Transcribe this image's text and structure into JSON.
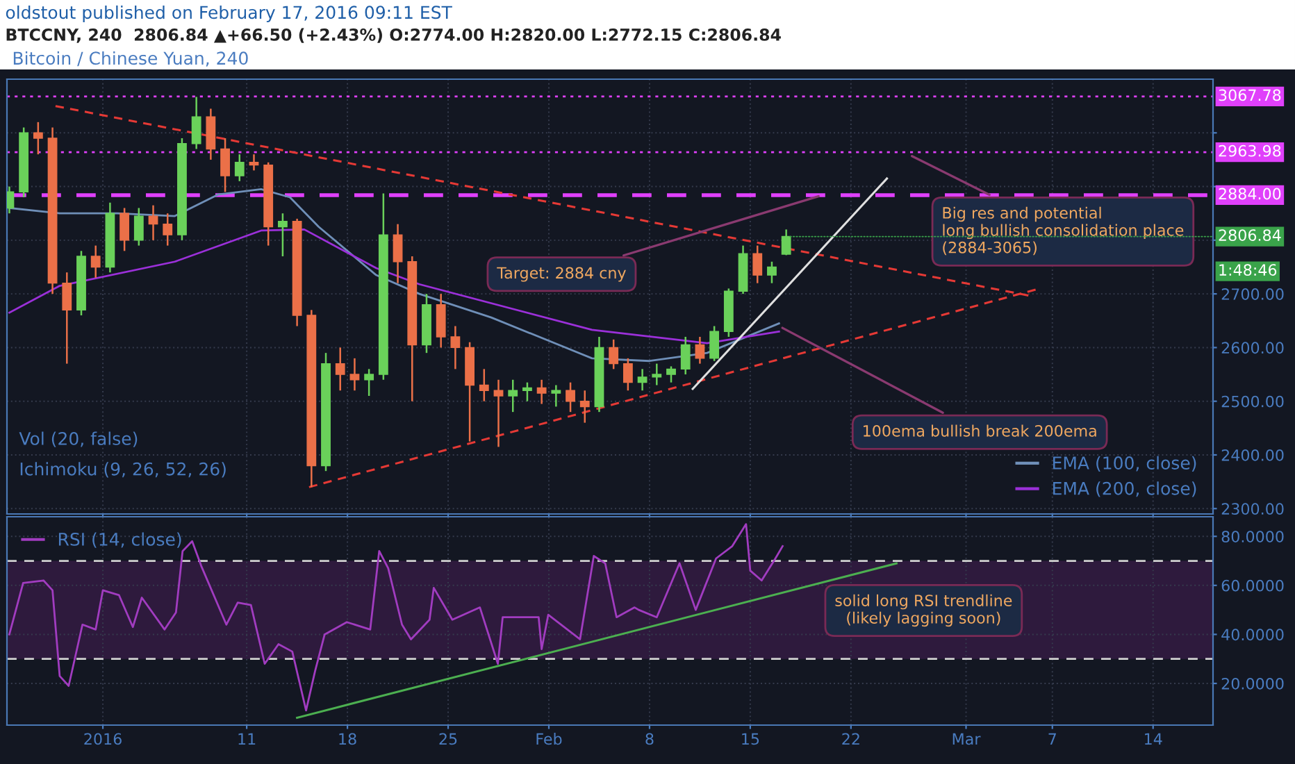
{
  "chart_data": [
    {
      "type": "candlestick",
      "title": "Bitcoin / Chinese Yuan, 240",
      "subtitle": "BTCCNY, 240  2806.84 ▲+66.50 (+2.43%) O:2774.00 H:2820.00 L:2772.15 C:2806.84",
      "x": [
        "2015-12-25T12:00",
        "2015-12-26T12:00",
        "2015-12-27T12:00",
        "2015-12-28T12:00",
        "2015-12-29T12:00",
        "2015-12-30T12:00",
        "2015-12-31T12:00",
        "2016-01-01T12:00",
        "2016-01-02T12:00",
        "2016-01-03T12:00",
        "2016-01-04T12:00",
        "2016-01-05T12:00",
        "2016-01-06T12:00",
        "2016-01-07T12:00",
        "2016-01-08T12:00",
        "2016-01-09T12:00",
        "2016-01-10T12:00",
        "2016-01-11T12:00",
        "2016-01-12T12:00",
        "2016-01-13T12:00",
        "2016-01-14T12:00",
        "2016-01-15T12:00",
        "2016-01-16T12:00",
        "2016-01-17T12:00",
        "2016-01-18T12:00",
        "2016-01-19T12:00",
        "2016-01-20T12:00",
        "2016-01-21T12:00",
        "2016-01-22T12:00",
        "2016-01-23T12:00",
        "2016-01-24T12:00",
        "2016-01-25T12:00",
        "2016-01-26T12:00",
        "2016-01-27T12:00",
        "2016-01-28T12:00",
        "2016-01-29T12:00",
        "2016-01-30T12:00",
        "2016-01-31T12:00",
        "2016-02-01T12:00",
        "2016-02-02T12:00",
        "2016-02-03T12:00",
        "2016-02-04T12:00",
        "2016-02-05T12:00",
        "2016-02-06T12:00",
        "2016-02-07T12:00",
        "2016-02-08T12:00",
        "2016-02-09T12:00",
        "2016-02-10T12:00",
        "2016-02-11T12:00",
        "2016-02-12T12:00",
        "2016-02-13T12:00",
        "2016-02-14T12:00",
        "2016-02-15T12:00",
        "2016-02-16T12:00",
        "2016-02-17T12:00"
      ],
      "ohlc": [
        [
          2860,
          2900,
          2850,
          2890
        ],
        [
          2890,
          3010,
          2880,
          3000
        ],
        [
          3000,
          3020,
          2960,
          2990
        ],
        [
          2990,
          3010,
          2700,
          2720
        ],
        [
          2720,
          2740,
          2570,
          2670
        ],
        [
          2670,
          2780,
          2660,
          2770
        ],
        [
          2770,
          2790,
          2730,
          2750
        ],
        [
          2750,
          2870,
          2740,
          2850
        ],
        [
          2850,
          2860,
          2780,
          2800
        ],
        [
          2800,
          2860,
          2790,
          2845
        ],
        [
          2845,
          2865,
          2800,
          2830
        ],
        [
          2830,
          2850,
          2790,
          2810
        ],
        [
          2810,
          2990,
          2800,
          2980
        ],
        [
          2980,
          3067,
          2970,
          3030
        ],
        [
          3030,
          3045,
          2950,
          2970
        ],
        [
          2970,
          2990,
          2890,
          2920
        ],
        [
          2920,
          2960,
          2910,
          2945
        ],
        [
          2945,
          2960,
          2930,
          2940
        ],
        [
          2940,
          2945,
          2790,
          2825
        ],
        [
          2825,
          2850,
          2770,
          2835
        ],
        [
          2835,
          2840,
          2640,
          2660
        ],
        [
          2660,
          2670,
          2340,
          2380
        ],
        [
          2380,
          2590,
          2370,
          2570
        ],
        [
          2570,
          2600,
          2520,
          2550
        ],
        [
          2550,
          2580,
          2520,
          2540
        ],
        [
          2540,
          2560,
          2510,
          2550
        ],
        [
          2550,
          2887,
          2540,
          2810
        ],
        [
          2810,
          2830,
          2720,
          2760
        ],
        [
          2760,
          2770,
          2500,
          2605
        ],
        [
          2605,
          2700,
          2590,
          2680
        ],
        [
          2680,
          2700,
          2600,
          2620
        ],
        [
          2620,
          2640,
          2560,
          2600
        ],
        [
          2600,
          2610,
          2425,
          2530
        ],
        [
          2530,
          2560,
          2500,
          2520
        ],
        [
          2520,
          2540,
          2415,
          2510
        ],
        [
          2510,
          2540,
          2480,
          2520
        ],
        [
          2520,
          2535,
          2500,
          2525
        ],
        [
          2525,
          2540,
          2495,
          2515
        ],
        [
          2515,
          2530,
          2490,
          2520
        ],
        [
          2520,
          2535,
          2480,
          2500
        ],
        [
          2500,
          2520,
          2460,
          2490
        ],
        [
          2490,
          2620,
          2480,
          2600
        ],
        [
          2600,
          2615,
          2560,
          2570
        ],
        [
          2570,
          2580,
          2520,
          2535
        ],
        [
          2535,
          2560,
          2520,
          2545
        ],
        [
          2545,
          2570,
          2530,
          2550
        ],
        [
          2550,
          2565,
          2535,
          2560
        ],
        [
          2560,
          2620,
          2550,
          2605
        ],
        [
          2605,
          2620,
          2570,
          2580
        ],
        [
          2580,
          2640,
          2575,
          2630
        ],
        [
          2630,
          2710,
          2620,
          2705
        ],
        [
          2705,
          2790,
          2700,
          2775
        ],
        [
          2775,
          2790,
          2720,
          2735
        ],
        [
          2735,
          2760,
          2720,
          2750
        ],
        [
          2774,
          2820,
          2772.15,
          2806.84
        ]
      ],
      "colors": [
        "#6ad15a",
        "#6ad15a",
        "#eb7048",
        "#eb7048",
        "#eb7048",
        "#6ad15a",
        "#eb7048",
        "#6ad15a",
        "#eb7048",
        "#6ad15a",
        "#eb7048",
        "#eb7048",
        "#6ad15a",
        "#6ad15a",
        "#eb7048",
        "#eb7048",
        "#6ad15a",
        "#eb7048",
        "#eb7048",
        "#6ad15a",
        "#eb7048",
        "#eb7048",
        "#6ad15a",
        "#eb7048",
        "#eb7048",
        "#6ad15a",
        "#6ad15a",
        "#eb7048",
        "#eb7048",
        "#6ad15a",
        "#eb7048",
        "#eb7048",
        "#eb7048",
        "#eb7048",
        "#eb7048",
        "#6ad15a",
        "#6ad15a",
        "#eb7048",
        "#6ad15a",
        "#eb7048",
        "#eb7048",
        "#6ad15a",
        "#eb7048",
        "#eb7048",
        "#6ad15a",
        "#6ad15a",
        "#6ad15a",
        "#6ad15a",
        "#eb7048",
        "#6ad15a",
        "#6ad15a",
        "#6ad15a",
        "#eb7048",
        "#6ad15a",
        "#6ad15a"
      ],
      "series": [
        {
          "name": "EMA (100, close)",
          "type": "line",
          "color": "#6f8fb8",
          "x": [
            "2015-12-25T12:00",
            "2015-12-29",
            "2016-01-02",
            "2016-01-06",
            "2016-01-09",
            "2016-01-12",
            "2016-01-14",
            "2016-01-16",
            "2016-01-20",
            "2016-01-23",
            "2016-01-28",
            "2016-02-04",
            "2016-02-08",
            "2016-02-12",
            "2016-02-17"
          ],
          "values": [
            2860,
            2850,
            2850,
            2845,
            2885,
            2895,
            2880,
            2825,
            2735,
            2700,
            2656,
            2580,
            2575,
            2590,
            2645
          ]
        },
        {
          "name": "EMA (200, close)",
          "type": "line",
          "color": "#9b30d9",
          "x": [
            "2015-12-25T12:00",
            "2015-12-29",
            "2016-01-06",
            "2016-01-12",
            "2016-01-15",
            "2016-01-20",
            "2016-01-23",
            "2016-02-04",
            "2016-02-12",
            "2016-02-17"
          ],
          "values": [
            2665,
            2715,
            2760,
            2818,
            2820,
            2748,
            2718,
            2633,
            2608,
            2630
          ]
        },
        {
          "type": "line",
          "color": "#e53935",
          "line_style": "dashed",
          "x": [
            "2015-12-28T17:00",
            "2016-03-05T08:00"
          ],
          "values": [
            3050,
            2697
          ]
        },
        {
          "type": "line",
          "color": "#e53935",
          "line_style": "dashed",
          "x": [
            "2016-01-15T08:00",
            "2016-03-05T20:00"
          ],
          "values": [
            2340,
            2708
          ]
        },
        {
          "type": "line",
          "color": "#e0e0e0",
          "line_style": "solid",
          "x": [
            "2016-02-11",
            "2016-02-24T12:00"
          ],
          "values": [
            2523,
            2915
          ]
        }
      ],
      "xlim": [
        "2015-12-25T08:00",
        "2016-03-18T04:00"
      ],
      "xticks": [
        {
          "value": "2016-01-01",
          "label": null
        },
        {
          "value": "2016-01-11",
          "label": null
        },
        {
          "value": "2016-01-18",
          "label": null
        },
        {
          "value": "2016-01-25",
          "label": null
        },
        {
          "value": "2016-02-01",
          "label": null
        },
        {
          "value": "2016-02-08",
          "label": null
        },
        {
          "value": "2016-02-15",
          "label": null
        },
        {
          "value": "2016-02-22",
          "label": null
        },
        {
          "value": "2016-03-01",
          "label": null
        },
        {
          "value": "2016-03-07",
          "label": null
        },
        {
          "value": "2016-03-14",
          "label": null
        }
      ],
      "ylim": [
        2290,
        3100
      ],
      "yticks": [
        {
          "value": 2300,
          "label": "2300.00"
        },
        {
          "value": 2400,
          "label": "2400.00"
        },
        {
          "value": 2500,
          "label": "2500.00"
        },
        {
          "value": 2600,
          "label": "2600.00"
        },
        {
          "value": 2700,
          "label": "2700.00"
        },
        {
          "value": 2800,
          "label": null
        },
        {
          "value": 2900,
          "label": null
        },
        {
          "value": 3000,
          "label": null
        }
      ],
      "ref_lines": [
        {
          "axis": "y",
          "value": 3067.78,
          "label": "3067.78",
          "color": "#e040fb",
          "line_style": "dotted"
        },
        {
          "axis": "y",
          "value": 2963.98,
          "label": "2963.98",
          "color": "#e040fb",
          "line_style": "dotted"
        },
        {
          "axis": "y",
          "value": 2884.0,
          "label": "2884.00",
          "color": "#e040fb",
          "line_style": "dashed"
        }
      ],
      "annotations": [
        "oldstout published on February 17, 2016 09:11 EST",
        "Vol (20, false)",
        "Ichimoku (9, 26, 52, 26)",
        {
          "text": "Target: 2884 cny",
          "x": "2016-02-20",
          "y": 2884
        },
        {
          "text": "Big res and potential\nlong bullish consolidation place\n(2884-3065)",
          "x": "2016-02-26",
          "y": 2960
        },
        {
          "text": "100ema bullish break 200ema",
          "x": "2016-02-17",
          "y": 2640
        },
        {
          "text": "2806.84",
          "x": "2016-02-17T09:00",
          "y": 2806.84
        },
        "1:48:46"
      ],
      "grid": true,
      "legend": "bottom right",
      "tick_labels": "y"
    },
    {
      "type": "line",
      "series": [
        {
          "name": "RSI (14, close)",
          "color": "#a13cc0",
          "x": [
            "2015-12-25T12:00",
            "2015-12-26T11:00",
            "2015-12-27T21:00",
            "2015-12-28T12:00",
            "2015-12-29T00:00",
            "2015-12-29T15:00",
            "2015-12-30T14:00",
            "2015-12-31T12:00",
            "2016-01-01T00:00",
            "2016-01-02T03:00",
            "2016-01-03T02:00",
            "2016-01-03T17:00",
            "2016-01-05T07:00",
            "2016-01-06T02:00",
            "2016-01-06T13:00",
            "2016-01-07T05:00",
            "2016-01-07T20:00",
            "2016-01-09T14:00",
            "2016-01-10T09:00",
            "2016-01-11T07:00",
            "2016-01-12T06:00",
            "2016-01-13T05:00",
            "2016-01-14T04:00",
            "2016-01-15T03:00",
            "2016-01-15T18:00",
            "2016-01-16T10:00",
            "2016-01-17T23:00",
            "2016-01-19T14:00",
            "2016-01-20T05:00",
            "2016-01-20T20:00",
            "2016-01-21T19:00",
            "2016-01-22T10:00",
            "2016-01-23T17:00",
            "2016-01-24T00:00",
            "2016-01-25T07:00",
            "2016-01-27T05:00",
            "2016-01-28T11:00",
            "2016-01-28T19:00",
            "2016-01-31T07:00",
            "2016-01-31T12:00",
            "2016-01-31T23:00",
            "2016-02-03T04:00",
            "2016-02-04T03:00",
            "2016-02-04T22:00",
            "2016-02-05T17:00",
            "2016-02-06T23:00",
            "2016-02-07T06:00",
            "2016-02-08T12:00",
            "2016-02-10T02:00",
            "2016-02-11T05:00",
            "2016-02-12T15:00",
            "2016-02-13T18:00",
            "2016-02-14T17:00",
            "2016-02-15T00:00",
            "2016-02-15T19:00",
            "2016-02-16T18:00",
            "2016-02-17T06:00"
          ],
          "values": [
            40,
            61,
            62,
            58,
            23,
            19,
            44,
            42,
            58,
            56,
            43,
            55,
            42,
            49,
            74,
            78,
            68,
            44,
            53,
            52,
            28,
            36,
            33,
            9,
            25,
            40,
            45,
            42,
            74,
            67,
            44,
            38,
            46,
            59,
            46,
            51,
            28,
            47,
            47,
            34,
            48,
            38,
            72,
            69,
            47,
            51,
            50,
            47,
            69,
            50,
            71,
            76,
            85,
            66,
            62,
            71,
            76
          ]
        },
        {
          "type": "line",
          "color": "#4caf50",
          "x": [
            "2016-01-14T12:00",
            "2016-02-25T04:00"
          ],
          "values": [
            6,
            69
          ]
        }
      ],
      "xlim": [
        "2015-12-25T08:00",
        "2016-03-18T04:00"
      ],
      "xticks": [
        {
          "value": "2016-01-01",
          "label": "2016"
        },
        {
          "value": "2016-01-11",
          "label": "11"
        },
        {
          "value": "2016-01-18",
          "label": "18"
        },
        {
          "value": "2016-01-25",
          "label": "25"
        },
        {
          "value": "2016-02-01",
          "label": "Feb"
        },
        {
          "value": "2016-02-08",
          "label": "8"
        },
        {
          "value": "2016-02-15",
          "label": "15"
        },
        {
          "value": "2016-02-22",
          "label": "22"
        },
        {
          "value": "2016-03-01",
          "label": "Mar"
        },
        {
          "value": "2016-03-07",
          "label": "7"
        },
        {
          "value": "2016-03-14",
          "label": "14"
        }
      ],
      "ylim": [
        3,
        88
      ],
      "yticks": [
        {
          "value": 20,
          "label": "20.0000"
        },
        {
          "value": 40,
          "label": "40.0000"
        },
        {
          "value": 60,
          "label": "60.0000"
        },
        {
          "value": 80,
          "label": "80.0000"
        }
      ],
      "ref_lines": [
        {
          "axis": "y",
          "value": 70,
          "color": "#d0d0d0",
          "line_style": "dashed"
        },
        {
          "axis": "y",
          "value": 30,
          "color": "#d0d0d0",
          "line_style": "dashed"
        }
      ],
      "bands": [
        {
          "axis": "y",
          "from": 30,
          "to": 70,
          "color": "#2e1a3d"
        }
      ],
      "annotations": [
        "solid long RSI trendline\n(likely lagging soon)"
      ],
      "grid": true,
      "legend": "top left"
    }
  ]
}
